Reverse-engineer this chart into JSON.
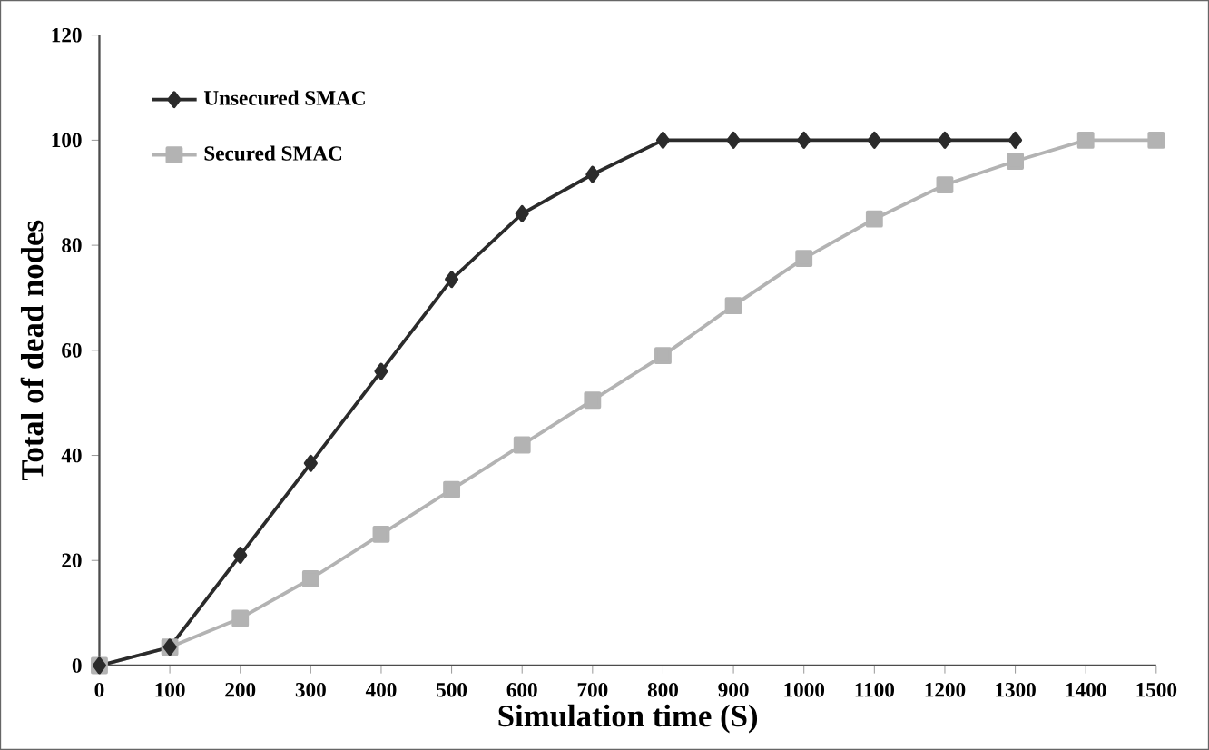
{
  "chart_data": {
    "type": "line",
    "xlabel": "Simulation time (S)",
    "ylabel": "Total of dead nodes",
    "xlim": [
      0,
      1500
    ],
    "xticks": [
      0,
      100,
      200,
      300,
      400,
      500,
      600,
      700,
      800,
      900,
      1000,
      1100,
      1200,
      1300,
      1400,
      1500
    ],
    "ylim": [
      0,
      120
    ],
    "yticks": [
      0,
      20,
      40,
      60,
      80,
      100,
      120
    ],
    "grid": false,
    "legend": "top left",
    "series": [
      {
        "name": "Unsecured SMAC",
        "color": "#2b2b2b",
        "marker": "diamond",
        "x": [
          0,
          100,
          200,
          300,
          400,
          500,
          600,
          700,
          800,
          900,
          1000,
          1100,
          1200,
          1300
        ],
        "values": [
          0,
          3.5,
          21,
          38.5,
          56,
          73.5,
          86,
          93.5,
          100,
          100,
          100,
          100,
          100,
          100
        ]
      },
      {
        "name": "Secured SMAC",
        "color": "#b3b3b3",
        "marker": "square",
        "x": [
          0,
          100,
          200,
          300,
          400,
          500,
          600,
          700,
          800,
          900,
          1000,
          1100,
          1200,
          1300,
          1400,
          1500
        ],
        "values": [
          0,
          3.5,
          9,
          16.5,
          25,
          33.5,
          42,
          50.5,
          59,
          68.5,
          77.5,
          85,
          91.5,
          96,
          100,
          100
        ]
      }
    ]
  }
}
